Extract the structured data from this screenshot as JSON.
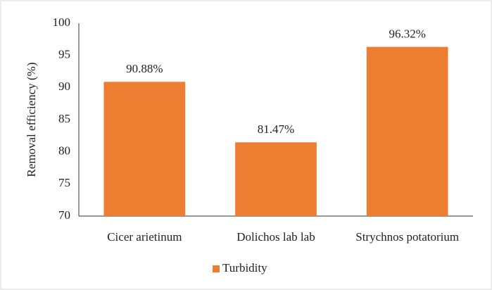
{
  "chart_data": {
    "type": "bar",
    "y_label": "Removal efficiency (%)",
    "categories": [
      "Cicer arietinum",
      "Dolichos lab lab",
      "Strychnos potatorium"
    ],
    "series": [
      {
        "name": "Turbidity",
        "color": "#ed7d31",
        "values": [
          90.88,
          81.47,
          96.32
        ],
        "value_labels": [
          "90.88%",
          "81.47%",
          "96.32%"
        ]
      }
    ],
    "ylim": [
      70,
      100
    ],
    "yticks": [
      70,
      75,
      80,
      85,
      90,
      95,
      100
    ],
    "grid": false,
    "legend": "bottom"
  }
}
